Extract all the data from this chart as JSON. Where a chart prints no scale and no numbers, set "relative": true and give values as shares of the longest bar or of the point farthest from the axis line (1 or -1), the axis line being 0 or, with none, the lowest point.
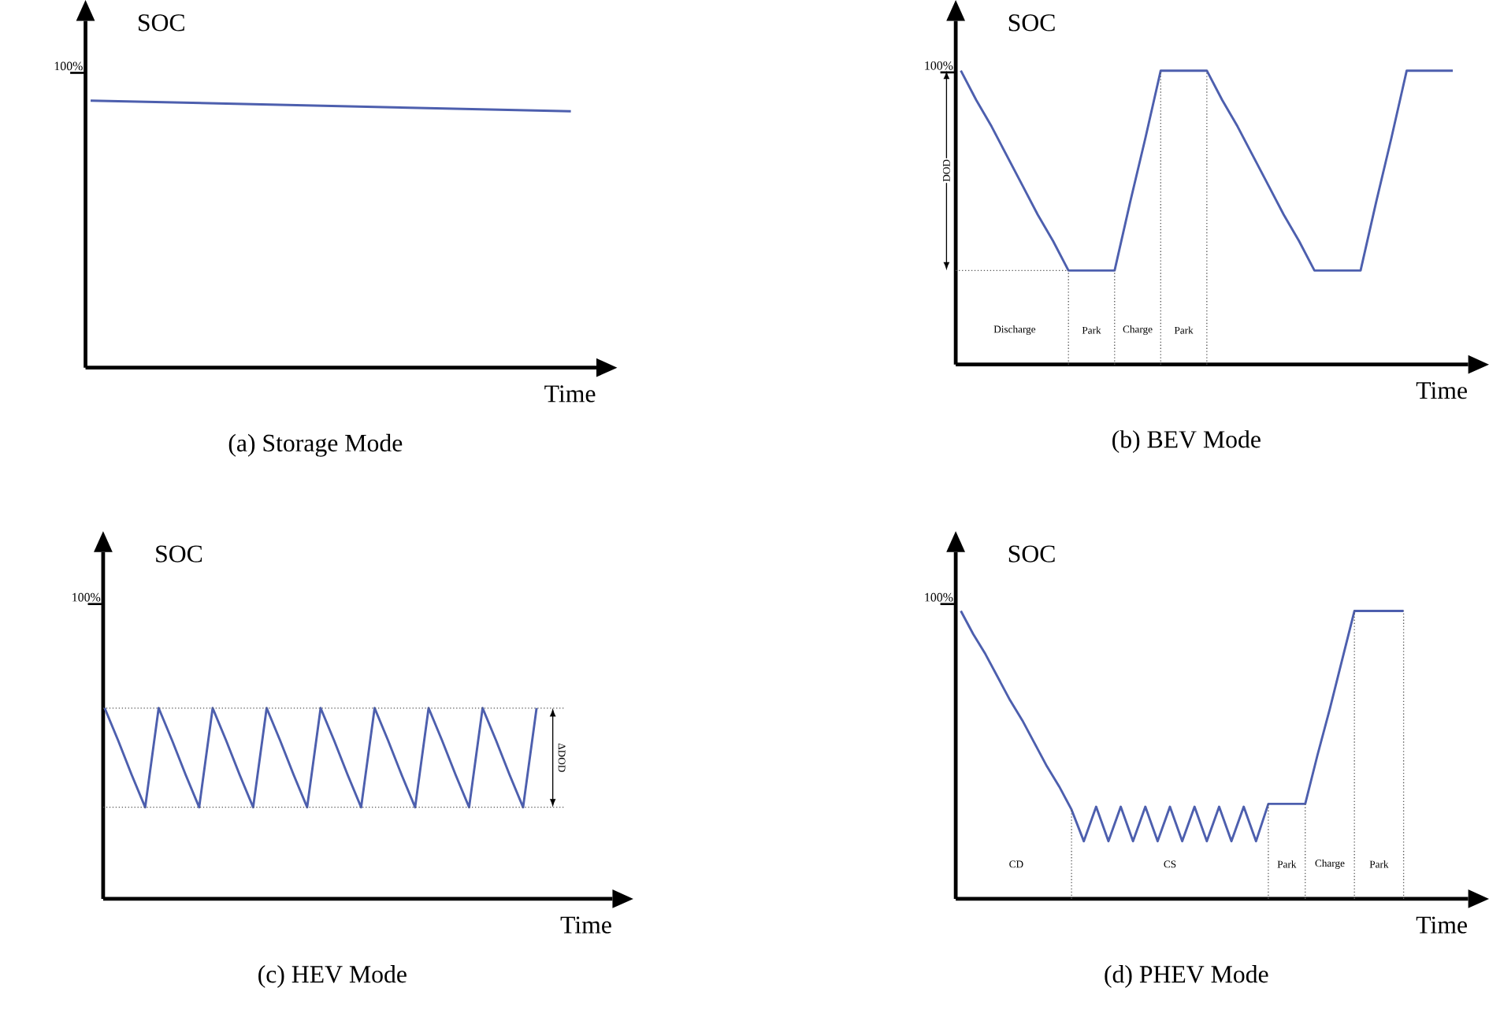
{
  "chart_data": [
    {
      "type": "line",
      "title": "(a) Storage Mode",
      "xlabel": "Time",
      "ylabel": "SOC",
      "relative": true,
      "tick_labels": false,
      "color": "#4d5fae",
      "categories": [
        null,
        null
      ],
      "values": [
        1,
        0.96
      ],
      "annotations": [
        "100%"
      ]
    },
    {
      "type": "line",
      "title": "(b) BEV Mode",
      "xlabel": "Time",
      "ylabel": "SOC",
      "relative": true,
      "tick_labels": false,
      "color": "#4d5fae",
      "categories": [
        null,
        null,
        null,
        null,
        null,
        null,
        null,
        null,
        null,
        null,
        null,
        null,
        null,
        null,
        null,
        null,
        null,
        null,
        null,
        null,
        null,
        null,
        null,
        null,
        null,
        null,
        null,
        null,
        null,
        null,
        null,
        null,
        null
      ],
      "values": [
        1,
        0.9,
        0.81,
        0.71,
        0.61,
        0.51,
        0.42,
        0.32,
        0.32,
        0.32,
        0.32,
        0.55,
        0.77,
        1,
        1,
        1,
        1,
        0.9,
        0.81,
        0.71,
        0.61,
        0.51,
        0.42,
        0.32,
        0.32,
        0.32,
        0.32,
        0.55,
        0.77,
        1,
        1,
        1,
        1
      ],
      "ref_lines": [
        {
          "axis": "y",
          "value": 0.32,
          "line_style": "dotted"
        }
      ],
      "annotations": [
        "100%",
        "Discharge",
        "Park",
        "Charge",
        "Park",
        "DOD"
      ]
    },
    {
      "type": "line",
      "title": "(c) HEV Mode",
      "xlabel": "Time",
      "ylabel": "SOC",
      "relative": true,
      "tick_labels": false,
      "color": "#4d5fae",
      "categories": [
        null,
        null,
        null,
        null,
        null,
        null,
        null,
        null,
        null,
        null,
        null,
        null,
        null,
        null,
        null,
        null,
        null,
        null,
        null,
        null,
        null,
        null,
        null,
        null,
        null,
        null,
        null,
        null,
        null,
        null,
        null,
        null,
        null
      ],
      "values": [
        1,
        0.83,
        0.65,
        0.48,
        1,
        0.83,
        0.65,
        0.48,
        1,
        0.83,
        0.65,
        0.48,
        1,
        0.83,
        0.65,
        0.48,
        1,
        0.83,
        0.65,
        0.48,
        1,
        0.83,
        0.65,
        0.48,
        1,
        0.83,
        0.65,
        0.48,
        1,
        0.83,
        0.65,
        0.48,
        1
      ],
      "ref_lines": [
        {
          "axis": "y",
          "value": 1,
          "line_style": "dotted"
        },
        {
          "axis": "y",
          "value": 0.48,
          "line_style": "dotted"
        }
      ],
      "annotations": [
        "100%",
        "ΔDOD"
      ]
    },
    {
      "type": "line",
      "title": "(d) PHEV Mode",
      "xlabel": "Time",
      "ylabel": "SOC",
      "relative": true,
      "tick_labels": false,
      "color": "#4d5fae",
      "categories": [
        null,
        null,
        null,
        null,
        null,
        null,
        null,
        null,
        null,
        null,
        null,
        null,
        null,
        null,
        null,
        null,
        null,
        null,
        null,
        null,
        null,
        null,
        null,
        null,
        null,
        null,
        null,
        null,
        null,
        null,
        null,
        null,
        null,
        null,
        null,
        null,
        null
      ],
      "values": [
        1,
        0.92,
        0.85,
        0.77,
        0.69,
        0.62,
        0.54,
        0.46,
        0.39,
        0.31,
        0.2,
        0.32,
        0.2,
        0.32,
        0.2,
        0.32,
        0.2,
        0.32,
        0.2,
        0.32,
        0.2,
        0.32,
        0.2,
        0.32,
        0.2,
        0.33,
        0.33,
        0.33,
        0.33,
        0.5,
        0.66,
        0.83,
        1,
        1,
        1,
        1,
        1
      ],
      "annotations": [
        "100%",
        "CD",
        "CS",
        "Park",
        "Charge",
        "Park"
      ]
    }
  ]
}
